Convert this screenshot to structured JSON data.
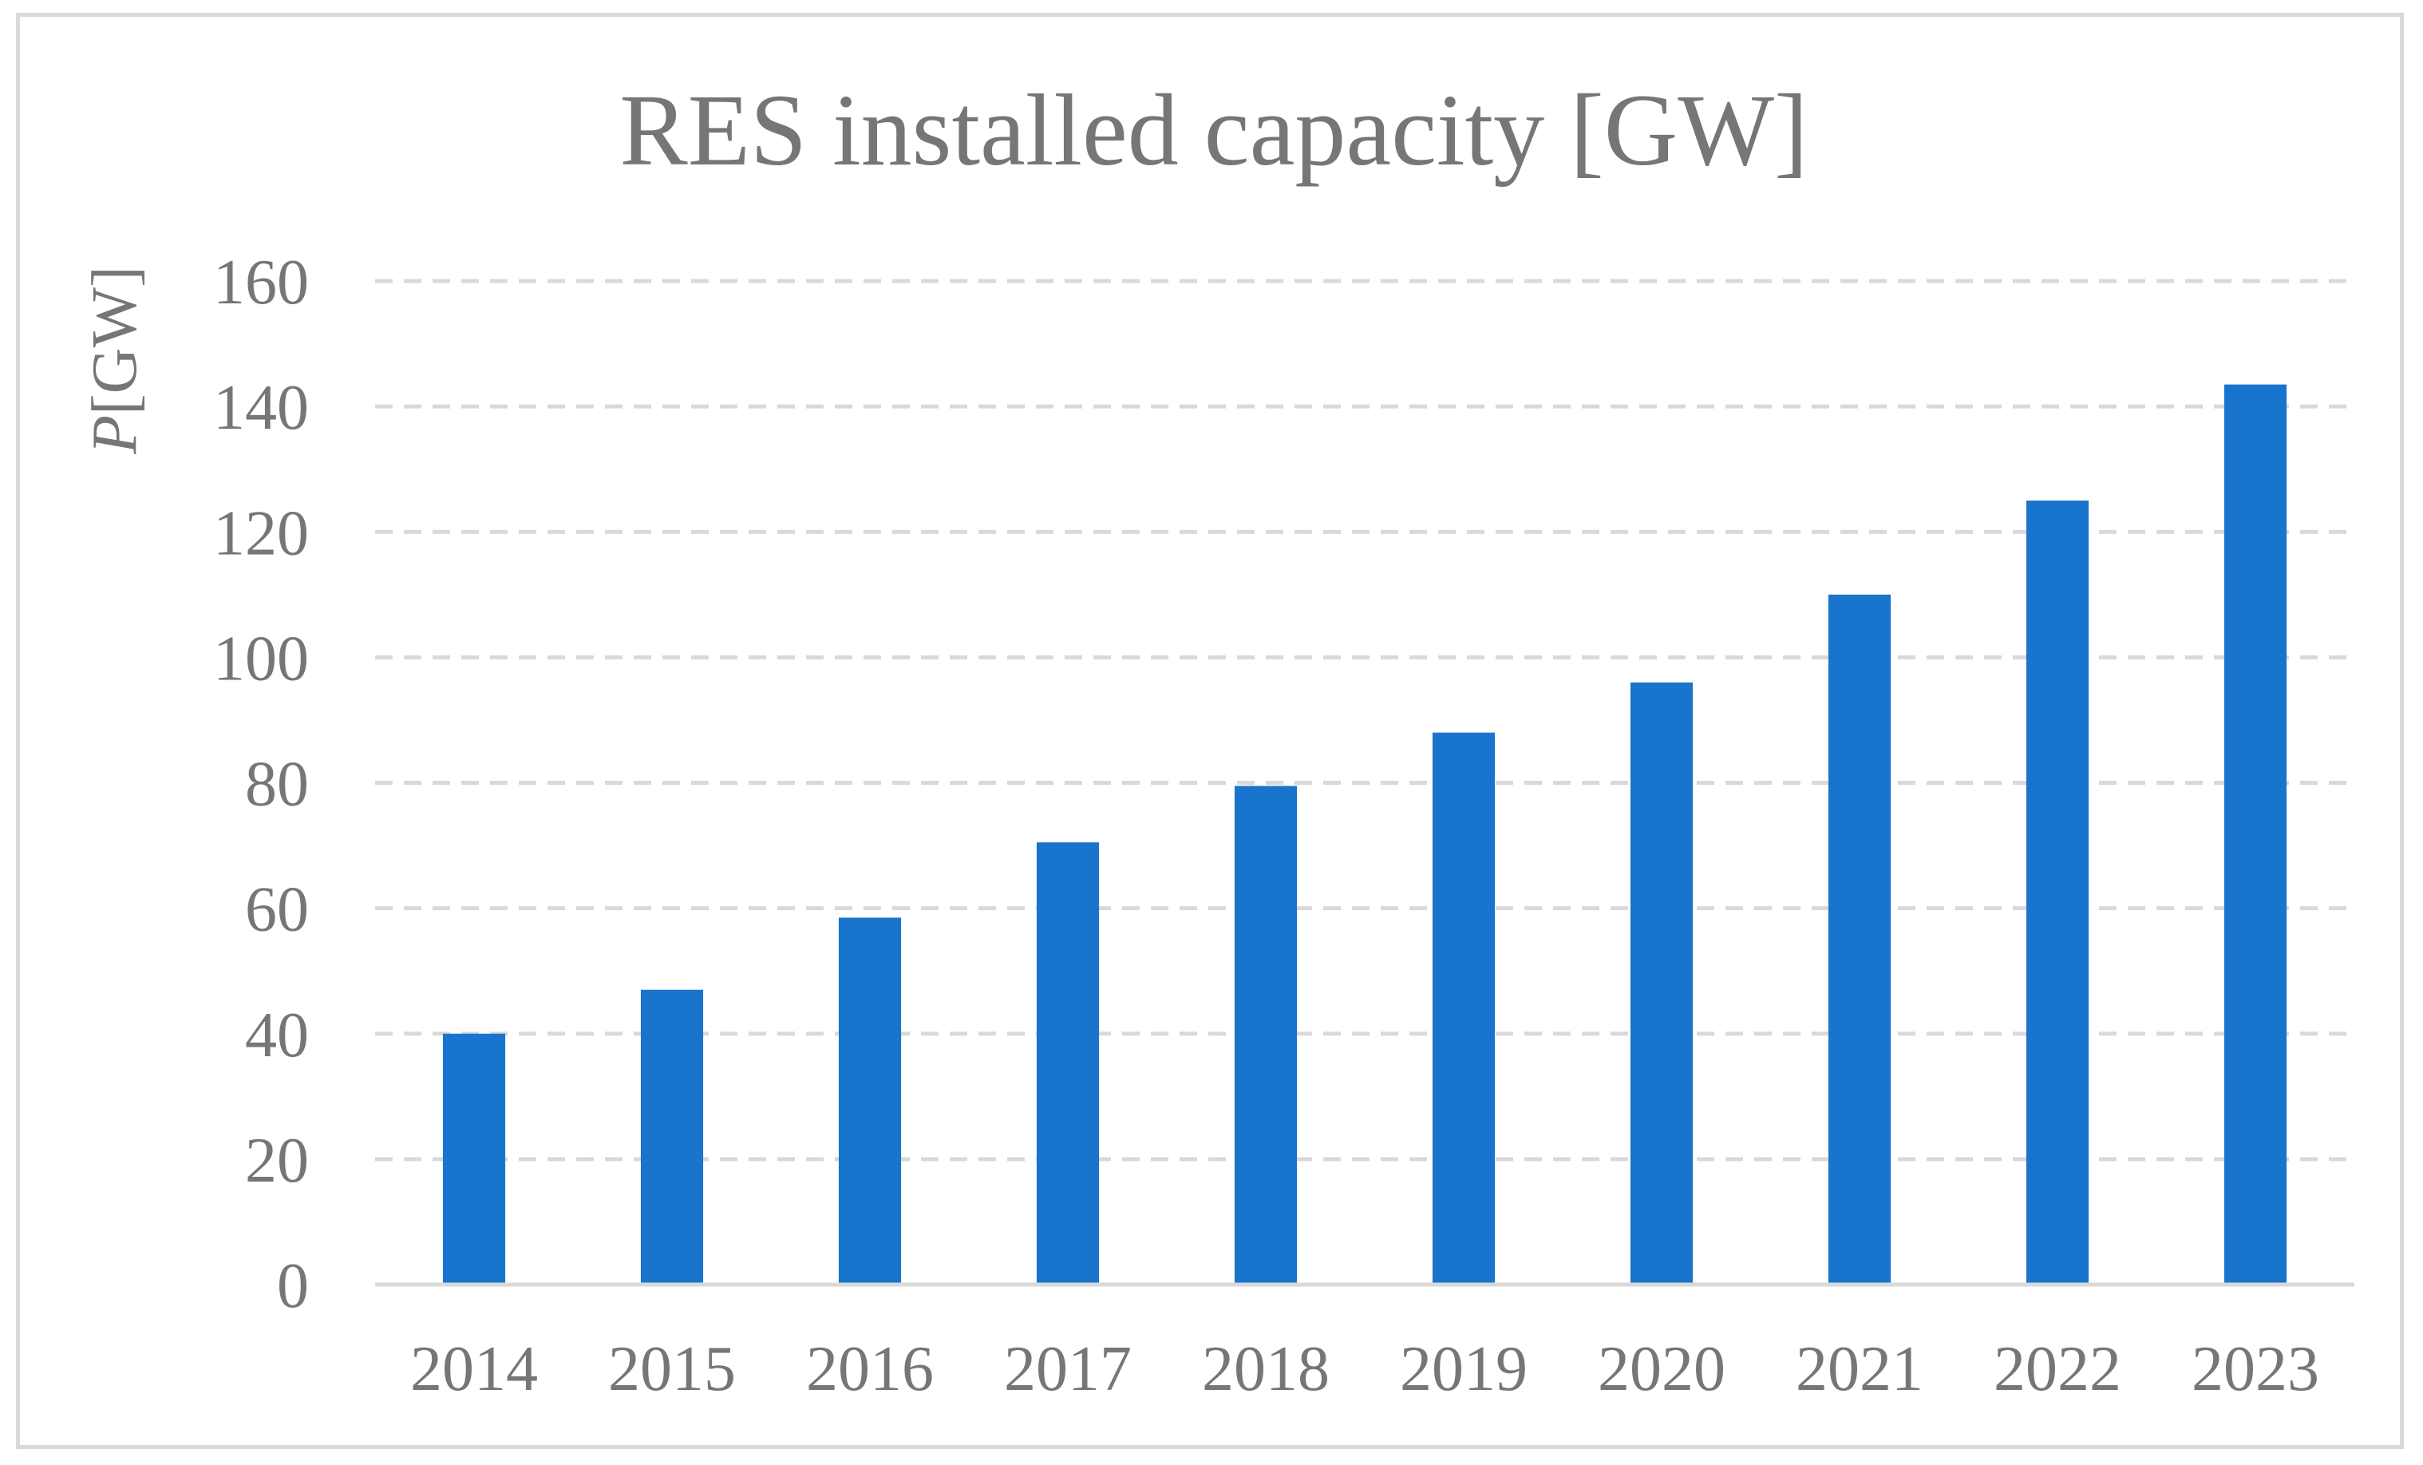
{
  "chart_data": {
    "type": "bar",
    "title": "RES installed capacity [GW]",
    "xlabel": "",
    "ylabel_italic": "P",
    "ylabel_rest": "[GW]",
    "categories": [
      "2014",
      "2015",
      "2016",
      "2017",
      "2018",
      "2019",
      "2020",
      "2021",
      "2022",
      "2023"
    ],
    "values": [
      40,
      47,
      58.5,
      70.5,
      79.5,
      88,
      96,
      110,
      125,
      143.5
    ],
    "ylim": [
      0,
      160
    ],
    "yticks": [
      0,
      20,
      40,
      60,
      80,
      100,
      120,
      140,
      160
    ],
    "grid": true,
    "bar_color": "#1874CD",
    "legend": "none"
  }
}
